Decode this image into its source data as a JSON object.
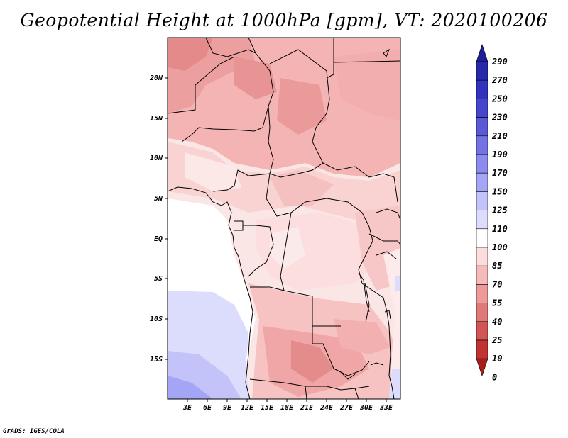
{
  "title": "Geopotential Height at 1000hPa [gpm], VT: 2020100206",
  "footer": "GrADS: IGES/COLA",
  "map": {
    "lat_labels": [
      "20N",
      "15N",
      "10N",
      "5N",
      "EQ",
      "5S",
      "10S",
      "15S"
    ],
    "lon_labels": [
      "3E",
      "6E",
      "9E",
      "12E",
      "15E",
      "18E",
      "21E",
      "24E",
      "27E",
      "30E",
      "33E"
    ],
    "extent": {
      "lon_min": 0,
      "lon_max": 35,
      "lat_min": -20,
      "lat_max": 24
    }
  },
  "colorbar": {
    "levels": [
      "290",
      "270",
      "250",
      "230",
      "210",
      "190",
      "170",
      "150",
      "125",
      "110",
      "100",
      "85",
      "70",
      "55",
      "40",
      "25",
      "10",
      "0"
    ],
    "colors": [
      "#1e1e96",
      "#2828aa",
      "#3232be",
      "#4646cc",
      "#5a5ad8",
      "#7373e4",
      "#8c8cee",
      "#a5a5f6",
      "#c3c3fa",
      "#dcdcfc",
      "#ffffff",
      "#fcdcdc",
      "#f7baba",
      "#ee9a9a",
      "#e07a7a",
      "#d25656",
      "#c23434",
      "#a81c1c"
    ]
  }
}
